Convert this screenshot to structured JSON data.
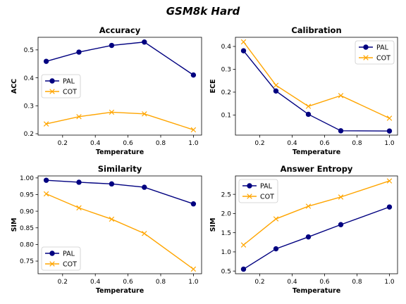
{
  "figure": {
    "title": "GSM8k Hard"
  },
  "colors": {
    "PAL": "#000080",
    "COT": "#ffa500"
  },
  "chart_data": [
    {
      "type": "line",
      "title": "Accuracy",
      "xlabel": "Temperature",
      "ylabel": "ACC",
      "x": [
        0.1,
        0.3,
        0.5,
        0.7,
        1.0
      ],
      "xlim": [
        0.05,
        1.05
      ],
      "ylim": [
        0.195,
        0.545
      ],
      "xticks": [
        0.2,
        0.4,
        0.6,
        0.8,
        1.0
      ],
      "xtick_labels": [
        "0.2",
        "0.4",
        "0.6",
        "0.8",
        "1.0"
      ],
      "yticks": [
        0.2,
        0.3,
        0.4,
        0.5
      ],
      "ytick_labels": [
        "0.2",
        "0.3",
        "0.4",
        "0.5"
      ],
      "legend_position": "center-left",
      "series": [
        {
          "name": "PAL",
          "marker": "circle",
          "values": [
            0.459,
            0.492,
            0.516,
            0.528,
            0.41
          ]
        },
        {
          "name": "COT",
          "marker": "x",
          "values": [
            0.235,
            0.261,
            0.277,
            0.271,
            0.214
          ]
        }
      ]
    },
    {
      "type": "line",
      "title": "Calibration",
      "xlabel": "Temperature",
      "ylabel": "ECE",
      "x": [
        0.1,
        0.3,
        0.5,
        0.7,
        1.0
      ],
      "xlim": [
        0.05,
        1.05
      ],
      "ylim": [
        0.012,
        0.44
      ],
      "xticks": [
        0.2,
        0.4,
        0.6,
        0.8,
        1.0
      ],
      "xtick_labels": [
        "0.2",
        "0.4",
        "0.6",
        "0.8",
        "1.0"
      ],
      "yticks": [
        0.1,
        0.2,
        0.3,
        0.4
      ],
      "ytick_labels": [
        "0.1",
        "0.2",
        "0.3",
        "0.4"
      ],
      "legend_position": "top-right",
      "series": [
        {
          "name": "PAL",
          "marker": "circle",
          "values": [
            0.381,
            0.205,
            0.103,
            0.031,
            0.03
          ]
        },
        {
          "name": "COT",
          "marker": "x",
          "values": [
            0.42,
            0.23,
            0.138,
            0.185,
            0.086
          ]
        }
      ]
    },
    {
      "type": "line",
      "title": "Similarity",
      "xlabel": "Temperature",
      "ylabel": "SIM",
      "x": [
        0.1,
        0.3,
        0.5,
        0.7,
        1.0
      ],
      "xlim": [
        0.05,
        1.05
      ],
      "ylim": [
        0.712,
        1.006
      ],
      "xticks": [
        0.2,
        0.4,
        0.6,
        0.8,
        1.0
      ],
      "xtick_labels": [
        "0.2",
        "0.4",
        "0.6",
        "0.8",
        "1.0"
      ],
      "yticks": [
        0.75,
        0.8,
        0.85,
        0.9,
        0.95,
        1.0
      ],
      "ytick_labels": [
        "0.75",
        "0.80",
        "0.85",
        "0.90",
        "0.95",
        "1.00"
      ],
      "legend_position": "lower-left",
      "series": [
        {
          "name": "PAL",
          "marker": "circle",
          "values": [
            0.993,
            0.987,
            0.982,
            0.972,
            0.922
          ]
        },
        {
          "name": "COT",
          "marker": "x",
          "values": [
            0.952,
            0.91,
            0.876,
            0.833,
            0.726
          ]
        }
      ]
    },
    {
      "type": "line",
      "title": "Answer Entropy",
      "xlabel": "Temperature",
      "ylabel": "SIM",
      "x": [
        0.1,
        0.3,
        0.5,
        0.7,
        1.0
      ],
      "xlim": [
        0.05,
        1.05
      ],
      "ylim": [
        0.43,
        2.98
      ],
      "xticks": [
        0.2,
        0.4,
        0.6,
        0.8,
        1.0
      ],
      "xtick_labels": [
        "0.2",
        "0.4",
        "0.6",
        "0.8",
        "1.0"
      ],
      "yticks": [
        0.5,
        1.0,
        1.5,
        2.0,
        2.5
      ],
      "ytick_labels": [
        "0.5",
        "1.0",
        "1.5",
        "2.0",
        "2.5"
      ],
      "legend_position": "upper-left",
      "series": [
        {
          "name": "PAL",
          "marker": "circle",
          "values": [
            0.55,
            1.08,
            1.39,
            1.71,
            2.17
          ]
        },
        {
          "name": "COT",
          "marker": "x",
          "values": [
            1.18,
            1.86,
            2.19,
            2.43,
            2.85
          ]
        }
      ]
    }
  ]
}
